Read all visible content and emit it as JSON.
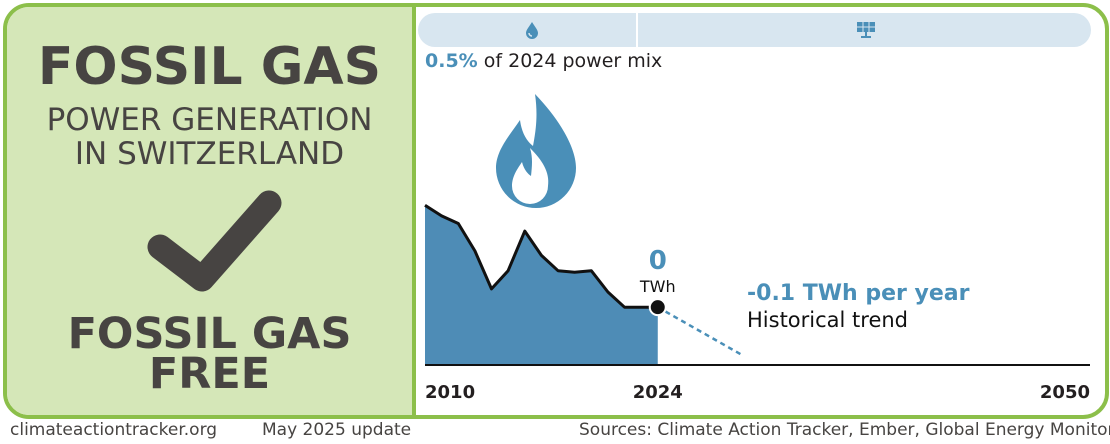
{
  "header": {
    "title": "FOSSIL GAS",
    "subtitle_line1": "POWER GENERATION",
    "subtitle_line2": "IN SWITZERLAND",
    "status_line1": "FOSSIL GAS",
    "status_line2": "FREE"
  },
  "share": {
    "value": "0.5%",
    "text": "of 2024 power mix"
  },
  "tech_icons": [
    "water-drop-icon",
    "solar-panel-icon"
  ],
  "colors": {
    "accent_blue": "#4a8fb8",
    "area_fill": "#4e8cb6",
    "border_green": "#8cbf4a",
    "panel_green": "#d5e7b8",
    "text_dark": "#474442"
  },
  "chart_data": {
    "type": "area",
    "x": [
      2010,
      2011,
      2012,
      2013,
      2014,
      2015,
      2016,
      2017,
      2018,
      2019,
      2020,
      2021,
      2022,
      2023,
      2024
    ],
    "values": [
      1.05,
      0.98,
      0.93,
      0.75,
      0.5,
      0.62,
      0.88,
      0.72,
      0.62,
      0.61,
      0.62,
      0.48,
      0.38,
      0.38,
      0.38
    ],
    "xlim": [
      2010,
      2050
    ],
    "ylim": [
      0,
      1.15
    ],
    "x_tick_labels": [
      "2010",
      "2024",
      "2050"
    ],
    "current_value": "0",
    "current_unit": "TWh",
    "trend_label": "-0.1 TWh per year",
    "trend_sublabel": "Historical trend",
    "trend_end": {
      "x": 2029,
      "value": 0.07
    }
  },
  "footer": {
    "site": "climateactiontracker.org",
    "update": "May 2025 update",
    "sources": "Sources: Climate Action Tracker, Ember, Global Energy Monitor"
  }
}
